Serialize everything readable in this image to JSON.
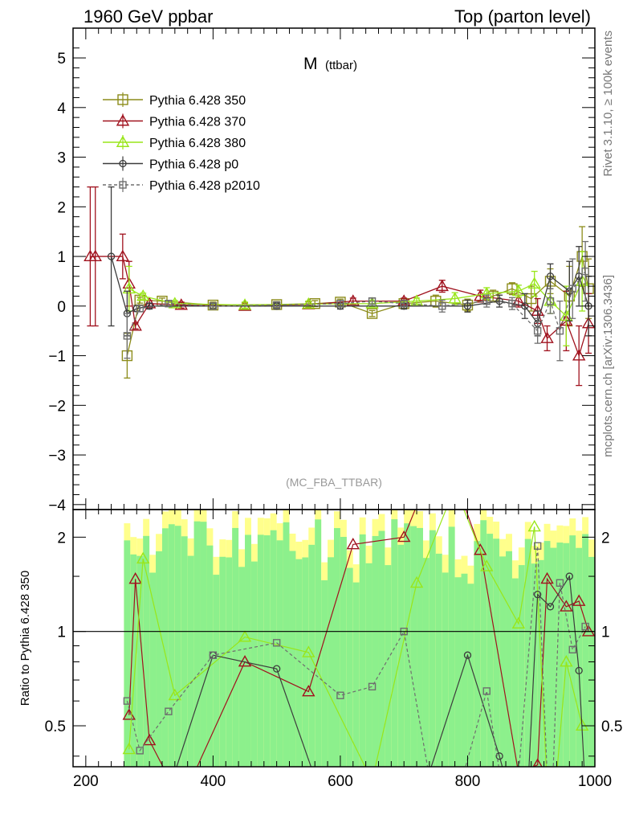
{
  "header": {
    "left": "1960 GeV ppbar",
    "right": "Top (parton level)"
  },
  "side_labels": {
    "rivet": "Rivet 3.1.10, ≥ 100k events",
    "source": "mcplots.cern.ch [arXiv:1306.3436]"
  },
  "chart_data": {
    "type": "line",
    "title": "M (ttbar)",
    "title_main": "M",
    "title_sub": "(ttbar)",
    "watermark": "(MC_FBA_TTBAR)",
    "xlabel": "",
    "ylabel": "",
    "ratio_ylabel": "Ratio to Pythia 6.428 350",
    "xlim": [
      180,
      1000
    ],
    "ylim": [
      -4.1,
      5.6
    ],
    "ratio_ylim": [
      0.37,
      2.45
    ],
    "x_ticks": [
      "200",
      "400",
      "600",
      "800",
      "1000"
    ],
    "y_ticks": [
      "−4",
      "−3",
      "−2",
      "−1",
      "0",
      "1",
      "2",
      "3",
      "4",
      "5"
    ],
    "ratio_ticks": [
      "0.5",
      "1",
      "2"
    ],
    "legend_position": "top-left",
    "colors": {
      "p350": "#8c8c1a",
      "p370": "#a0121e",
      "p380": "#99e619",
      "p0": "#3c3c3c",
      "p2010": "#6e6e6e",
      "band_yellow": "#ffff8c",
      "band_green": "#8cf08c"
    },
    "series": [
      {
        "name": "Pythia 6.428 350",
        "key": "p350",
        "marker": "square",
        "dash": false,
        "x": [
          265,
          285,
          320,
          400,
          500,
          560,
          600,
          650,
          700,
          750,
          800,
          840,
          870,
          900,
          930,
          960,
          980,
          990
        ],
        "y": [
          -1.0,
          0.12,
          0.1,
          0.02,
          0.03,
          0.05,
          0.08,
          -0.15,
          0.05,
          0.1,
          0.02,
          0.2,
          0.35,
          0.15,
          0.5,
          0.2,
          1.0,
          0.35
        ]
      },
      {
        "name": "Pythia 6.428 370",
        "key": "p370",
        "marker": "triangle",
        "dash": false,
        "x": [
          207,
          215,
          258,
          268,
          278,
          300,
          350,
          450,
          550,
          620,
          700,
          760,
          820,
          880,
          910,
          925,
          955,
          975,
          990
        ],
        "y": [
          1.0,
          1.0,
          1.0,
          0.45,
          -0.4,
          0.05,
          0.02,
          0.0,
          0.03,
          0.1,
          0.1,
          0.4,
          0.2,
          0.1,
          -0.1,
          -0.65,
          -0.3,
          -1.0,
          -0.35
        ]
      },
      {
        "name": "Pythia 6.428 380",
        "key": "p380",
        "marker": "triangle",
        "dash": false,
        "x": [
          268,
          290,
          340,
          450,
          550,
          650,
          720,
          780,
          830,
          880,
          905,
          930,
          955,
          980
        ],
        "y": [
          0.35,
          0.2,
          0.05,
          0.02,
          0.04,
          0.05,
          0.1,
          0.15,
          0.25,
          0.3,
          0.45,
          0.1,
          -0.2,
          0.5
        ]
      },
      {
        "name": "Pythia 6.428 p0",
        "key": "p0",
        "marker": "circle",
        "dash": false,
        "x": [
          240,
          265,
          280,
          300,
          400,
          500,
          600,
          700,
          800,
          850,
          890,
          910,
          930,
          960,
          975,
          990
        ],
        "y": [
          1.0,
          -0.15,
          -0.05,
          0.0,
          0.0,
          0.0,
          0.0,
          0.0,
          0.0,
          0.1,
          0.0,
          -0.35,
          0.6,
          0.3,
          0.6,
          0.0
        ]
      },
      {
        "name": "Pythia 6.428 p2010",
        "key": "p2010",
        "marker": "square",
        "dash": true,
        "x": [
          265,
          285,
          330,
          400,
          500,
          600,
          650,
          700,
          760,
          830,
          870,
          910,
          930,
          945,
          965,
          985
        ],
        "y": [
          -0.6,
          -0.05,
          0.05,
          0.0,
          0.02,
          0.05,
          0.1,
          0.05,
          0.0,
          0.1,
          0.05,
          -0.5,
          0.1,
          -0.5,
          0.35,
          0.7
        ]
      }
    ]
  }
}
